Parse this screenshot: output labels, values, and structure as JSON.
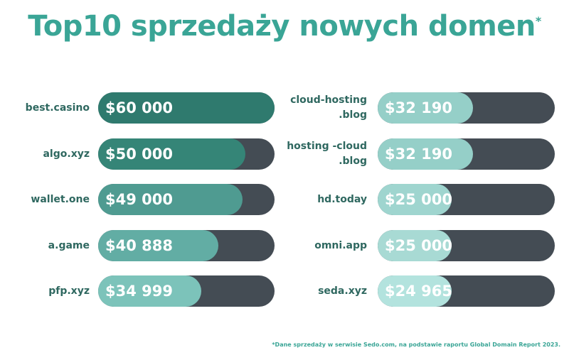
{
  "chart_data": {
    "type": "bar",
    "title": "Top10 sprzedaży nowych domen",
    "title_marker": "*",
    "columns": [
      {
        "series_max": 60000,
        "bars": [
          {
            "category": "best.casino",
            "value": 60000,
            "label": "$60 000",
            "color": "#2f7a6e"
          },
          {
            "category": "algo.xyz",
            "value": 50000,
            "label": "$50 000",
            "color": "#358577"
          },
          {
            "category": "wallet.one",
            "value": 49000,
            "label": "$49 000",
            "color": "#4f9b91"
          },
          {
            "category": "a.game",
            "value": 40888,
            "label": "$40 888",
            "color": "#62ada4"
          },
          {
            "category": "pfp.xyz",
            "value": 34999,
            "label": "$34 999",
            "color": "#7cc3ba"
          }
        ]
      },
      {
        "series_max": 60000,
        "bars": [
          {
            "category": "cloud-hosting\n.blog",
            "value": 32190,
            "label": "$32 190",
            "color": "#95cfc8"
          },
          {
            "category": "hosting -cloud\n.blog",
            "value": 32190,
            "label": "$32 190",
            "color": "#95cfc8"
          },
          {
            "category": "hd.today",
            "value": 25000,
            "label": "$25 000",
            "color": "#9fd5cf"
          },
          {
            "category": "omni.app",
            "value": 25000,
            "label": "$25 000",
            "color": "#a8dad4"
          },
          {
            "category": "seda.xyz",
            "value": 24965,
            "label": "$24 965",
            "color": "#b3e3de"
          }
        ]
      }
    ],
    "track_color": "#444c54",
    "footnote": "*Dane sprzedaży w serwisie Sedo.com, na podstawie raportu Global Domain Report 2023."
  }
}
